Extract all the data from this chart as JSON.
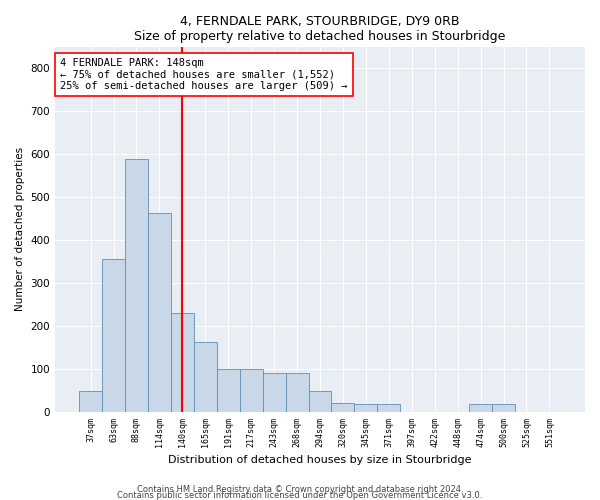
{
  "title": "4, FERNDALE PARK, STOURBRIDGE, DY9 0RB",
  "subtitle": "Size of property relative to detached houses in Stourbridge",
  "xlabel": "Distribution of detached houses by size in Stourbridge",
  "ylabel": "Number of detached properties",
  "bar_color": "#c8d8e8",
  "bar_edge_color": "#6090b0",
  "background_color": "#e8eef4",
  "grid_color": "#ffffff",
  "categories": [
    "37sqm",
    "63sqm",
    "88sqm",
    "114sqm",
    "140sqm",
    "165sqm",
    "191sqm",
    "217sqm",
    "243sqm",
    "268sqm",
    "294sqm",
    "320sqm",
    "345sqm",
    "371sqm",
    "397sqm",
    "422sqm",
    "448sqm",
    "474sqm",
    "500sqm",
    "525sqm",
    "551sqm"
  ],
  "values": [
    48,
    355,
    590,
    462,
    230,
    163,
    100,
    100,
    90,
    90,
    48,
    20,
    18,
    18,
    0,
    0,
    0,
    18,
    18,
    0,
    0
  ],
  "ylim": [
    0,
    850
  ],
  "yticks": [
    0,
    100,
    200,
    300,
    400,
    500,
    600,
    700,
    800
  ],
  "red_line_index": 4.0,
  "annotation_text": "4 FERNDALE PARK: 148sqm\n← 75% of detached houses are smaller (1,552)\n25% of semi-detached houses are larger (509) →",
  "footnote1": "Contains HM Land Registry data © Crown copyright and database right 2024.",
  "footnote2": "Contains public sector information licensed under the Open Government Licence v3.0."
}
